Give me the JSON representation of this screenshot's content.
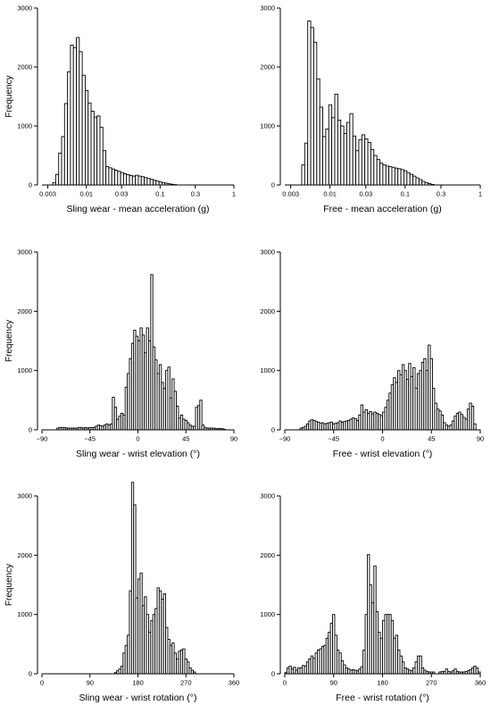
{
  "chart_data": [
    {
      "type": "bar",
      "xlabel": "Sling wear - mean acceleration (g)",
      "ylabel": "Frequency",
      "xscale": "log",
      "xlim": [
        0.0025,
        1
      ],
      "ylim": [
        0,
        3000
      ],
      "yticks": [
        0,
        1000,
        2000,
        3000
      ],
      "xticks": [
        0.003,
        0.01,
        0.03,
        0.1,
        0.3,
        1
      ],
      "xtick_labels": [
        "0.003",
        "0.01",
        "0.03",
        "0.1",
        "0.3",
        "1"
      ],
      "bin_start": 0.0035,
      "bin_ratio": 1.0965,
      "values": [
        40,
        180,
        540,
        820,
        1380,
        1920,
        2370,
        2330,
        2500,
        2260,
        1860,
        1600,
        1390,
        1250,
        1150,
        1170,
        980,
        580,
        310,
        290,
        270,
        250,
        230,
        210,
        190,
        175,
        160,
        150,
        165,
        150,
        140,
        125,
        110,
        95,
        80,
        65,
        50,
        40,
        30,
        20,
        12,
        6
      ]
    },
    {
      "type": "bar",
      "xlabel": "Free - mean acceleration (g)",
      "ylabel": "",
      "xscale": "log",
      "xlim": [
        0.0025,
        1
      ],
      "ylim": [
        0,
        3000
      ],
      "yticks": [
        0,
        1000,
        2000,
        3000
      ],
      "xticks": [
        0.003,
        0.01,
        0.03,
        0.1,
        0.3,
        1
      ],
      "xtick_labels": [
        "0.003",
        "0.01",
        "0.03",
        "0.1",
        "0.3",
        "1"
      ],
      "bin_start": 0.0042,
      "bin_ratio": 1.0965,
      "values": [
        340,
        710,
        2780,
        2670,
        2420,
        1800,
        1320,
        820,
        950,
        1360,
        1140,
        1540,
        1100,
        1000,
        870,
        1060,
        1210,
        830,
        580,
        770,
        850,
        780,
        720,
        600,
        500,
        430,
        370,
        340,
        320,
        310,
        300,
        285,
        275,
        260,
        240,
        210,
        180,
        150,
        120,
        90,
        60,
        40,
        25,
        10
      ]
    },
    {
      "type": "bar",
      "xlabel": "Sling wear - wrist elevation (°)",
      "ylabel": "Frequency",
      "xscale": "linear",
      "xlim": [
        -90,
        90
      ],
      "ylim": [
        0,
        3000
      ],
      "yticks": [
        0,
        1000,
        2000,
        3000
      ],
      "xticks": [
        -90,
        -45,
        0,
        45,
        90
      ],
      "xtick_labels": [
        "−90",
        "−45",
        "0",
        "45",
        "90"
      ],
      "bin_start": -90,
      "bin_width": 2,
      "values": [
        0,
        0,
        0,
        0,
        0,
        0,
        0,
        30,
        40,
        40,
        40,
        30,
        30,
        30,
        30,
        30,
        30,
        40,
        40,
        30,
        40,
        30,
        40,
        40,
        40,
        60,
        80,
        70,
        60,
        80,
        100,
        80,
        100,
        550,
        380,
        180,
        230,
        280,
        250,
        720,
        950,
        1200,
        1460,
        1680,
        1580,
        1500,
        1720,
        1600,
        1300,
        1720,
        1500,
        2620,
        1400,
        1180,
        950,
        1100,
        800,
        700,
        1000,
        1060,
        540,
        860,
        650,
        400,
        200,
        250,
        180,
        160,
        120,
        80,
        60,
        60,
        380,
        410,
        500,
        80,
        40,
        30,
        30,
        30,
        30,
        20,
        20,
        20,
        20,
        10,
        0,
        0,
        0,
        0
      ]
    },
    {
      "type": "bar",
      "xlabel": "Free - wrist elevation (°)",
      "ylabel": "",
      "xscale": "linear",
      "xlim": [
        -90,
        90
      ],
      "ylim": [
        0,
        3000
      ],
      "yticks": [
        0,
        1000,
        2000,
        3000
      ],
      "xticks": [
        -90,
        -45,
        0,
        45,
        90
      ],
      "xtick_labels": [
        "−90",
        "−45",
        "0",
        "45",
        "90"
      ],
      "bin_start": -90,
      "bin_width": 2,
      "values": [
        0,
        0,
        0,
        0,
        0,
        0,
        0,
        30,
        40,
        60,
        100,
        150,
        170,
        160,
        140,
        130,
        110,
        120,
        100,
        110,
        120,
        130,
        100,
        110,
        120,
        150,
        130,
        140,
        150,
        160,
        180,
        200,
        190,
        160,
        250,
        420,
        300,
        340,
        280,
        310,
        270,
        300,
        280,
        260,
        240,
        300,
        380,
        500,
        620,
        760,
        880,
        800,
        1000,
        930,
        1100,
        1000,
        850,
        1120,
        900,
        1050,
        700,
        950,
        1000,
        1140,
        1200,
        1000,
        1430,
        1200,
        700,
        450,
        350,
        320,
        250,
        120,
        80,
        60,
        80,
        150,
        230,
        280,
        300,
        260,
        210,
        180,
        350,
        450,
        400,
        100,
        0,
        0
      ]
    },
    {
      "type": "bar",
      "xlabel": "Sling wear - wrist rotation (°)",
      "ylabel": "Frequency",
      "xscale": "linear",
      "xlim": [
        0,
        360
      ],
      "ylim": [
        0,
        3000
      ],
      "yticks": [
        0,
        1000,
        2000,
        3000
      ],
      "xticks": [
        0,
        90,
        180,
        270,
        360
      ],
      "xtick_labels": [
        "0",
        "90",
        "180",
        "270",
        "360"
      ],
      "bin_start": 0,
      "bin_width": 4,
      "values": [
        0,
        0,
        0,
        0,
        0,
        0,
        0,
        0,
        0,
        0,
        0,
        0,
        0,
        0,
        0,
        0,
        0,
        0,
        0,
        0,
        0,
        0,
        0,
        0,
        0,
        0,
        0,
        0,
        0,
        0,
        0,
        0,
        0,
        0,
        20,
        50,
        80,
        130,
        350,
        480,
        650,
        1400,
        3230,
        2850,
        1280,
        1600,
        1700,
        1150,
        1300,
        1000,
        700,
        900,
        1000,
        1100,
        1450,
        1400,
        1260,
        1350,
        780,
        580,
        480,
        520,
        350,
        250,
        380,
        400,
        420,
        250,
        200,
        100,
        60,
        30,
        0,
        0,
        0,
        0,
        0,
        0,
        0,
        0,
        0,
        0,
        0,
        0,
        0,
        0,
        0,
        0,
        0,
        0
      ]
    },
    {
      "type": "bar",
      "xlabel": "Free - wrist rotation (°)",
      "ylabel": "",
      "xscale": "linear",
      "xlim": [
        0,
        360
      ],
      "ylim": [
        0,
        3000
      ],
      "yticks": [
        0,
        1000,
        2000,
        3000
      ],
      "xticks": [
        0,
        90,
        180,
        270,
        360
      ],
      "xtick_labels": [
        "0",
        "90",
        "180",
        "270",
        "360"
      ],
      "bin_start": 0,
      "bin_width": 4,
      "values": [
        20,
        100,
        130,
        80,
        110,
        60,
        100,
        100,
        140,
        130,
        200,
        250,
        300,
        260,
        350,
        400,
        420,
        460,
        480,
        600,
        700,
        850,
        1000,
        650,
        400,
        350,
        220,
        150,
        100,
        80,
        60,
        70,
        60,
        50,
        80,
        120,
        400,
        1000,
        2010,
        1500,
        1200,
        1820,
        1050,
        700,
        600,
        900,
        1000,
        1000,
        1000,
        900,
        600,
        650,
        400,
        300,
        200,
        100,
        80,
        60,
        50,
        100,
        200,
        300,
        300,
        100,
        60,
        40,
        30,
        30,
        30,
        0,
        0,
        30,
        40,
        40,
        80,
        40,
        30,
        50,
        80,
        40,
        30,
        30,
        30,
        40,
        50,
        70,
        100,
        130,
        100,
        30
      ]
    }
  ]
}
